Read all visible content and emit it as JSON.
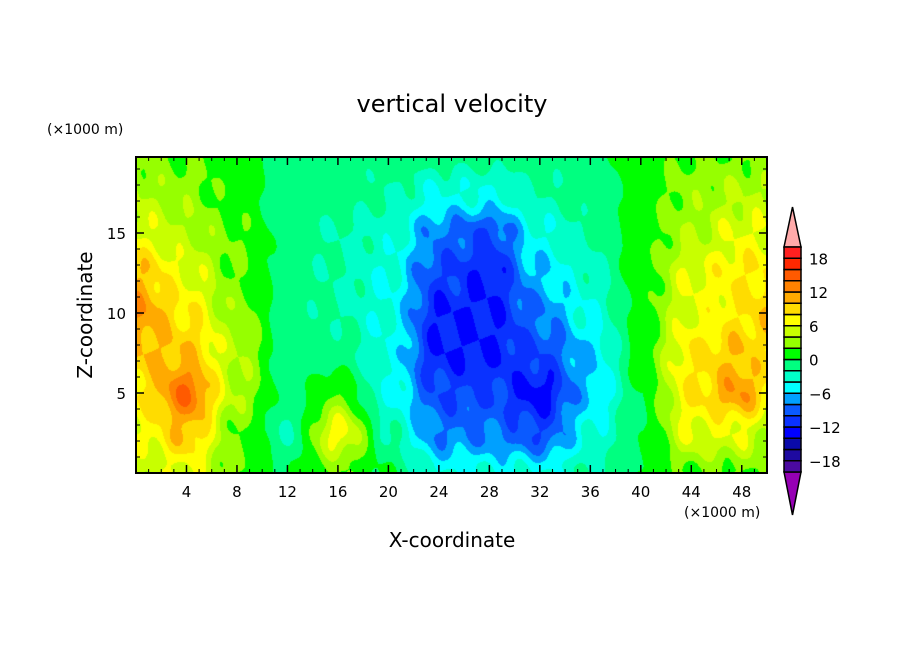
{
  "chart_data": {
    "type": "heatmap",
    "title": "vertical velocity",
    "xlabel": "X-coordinate",
    "ylabel": "Z-coordinate",
    "x_units": "(×1000 m)",
    "y_units": "(×1000 m)",
    "xlim": [
      0,
      50
    ],
    "ylim": [
      0,
      19.75
    ],
    "x_ticks": [
      4,
      8,
      12,
      16,
      20,
      24,
      28,
      32,
      36,
      40,
      44,
      48
    ],
    "y_ticks": [
      5,
      10,
      15
    ],
    "grid": false,
    "x": [
      0,
      4,
      8,
      12,
      16,
      20,
      24,
      28,
      32,
      36,
      40,
      44,
      48,
      50
    ],
    "z": [
      0,
      2.5,
      5,
      7.5,
      10,
      12.5,
      15,
      17.5,
      20
    ],
    "values": [
      [
        4,
        6,
        2,
        0,
        2,
        0,
        -4,
        -4,
        -4,
        -2,
        0,
        2,
        2,
        2
      ],
      [
        6,
        10,
        2,
        -2,
        7,
        -2,
        -8,
        -8,
        -10,
        -4,
        0,
        6,
        6,
        4
      ],
      [
        8,
        14,
        4,
        -1,
        2,
        -4,
        -10,
        -10,
        -13,
        -6,
        0,
        8,
        12,
        8
      ],
      [
        10,
        10,
        4,
        -1,
        -1,
        -4,
        -12,
        -12,
        -10,
        -6,
        1,
        8,
        10,
        8
      ],
      [
        12,
        8,
        3,
        -1,
        -2,
        -4,
        -12,
        -12,
        -8,
        -4,
        1,
        6,
        8,
        10
      ],
      [
        10,
        6,
        2,
        -1,
        -2,
        -4,
        -10,
        -12,
        -6,
        -3,
        1,
        6,
        8,
        8
      ],
      [
        6,
        4,
        2,
        -1,
        -2,
        -3,
        -8,
        -10,
        -4,
        -2,
        1,
        4,
        6,
        6
      ],
      [
        4,
        3,
        1,
        -1,
        -1,
        -2,
        -4,
        -4,
        -2,
        -1,
        1,
        3,
        4,
        4
      ],
      [
        2,
        2,
        1,
        -1,
        -1,
        -1,
        -1,
        -1,
        -1,
        -1,
        1,
        2,
        2,
        2
      ]
    ],
    "colorbar": {
      "levels_min": -20,
      "levels_max": 20,
      "step": 2,
      "tick_labels": [
        "18",
        "12",
        "6",
        "0",
        "−6",
        "−12",
        "−18"
      ],
      "tick_values": [
        18,
        12,
        6,
        0,
        -6,
        -12,
        -18
      ],
      "colors": [
        "#4b0aa0",
        "#1e0aa0",
        "#0a0aaa",
        "#0000ff",
        "#0a32ff",
        "#0a5aff",
        "#00a0ff",
        "#00ffff",
        "#00ffc8",
        "#00ff80",
        "#00ff00",
        "#96ff00",
        "#c8ff00",
        "#ffff00",
        "#ffdc00",
        "#ffaa00",
        "#ff8200",
        "#ff5a00",
        "#ff2800",
        "#ff2020"
      ],
      "over_color": "#ffaaaa",
      "under_color": "#9600b4"
    }
  }
}
